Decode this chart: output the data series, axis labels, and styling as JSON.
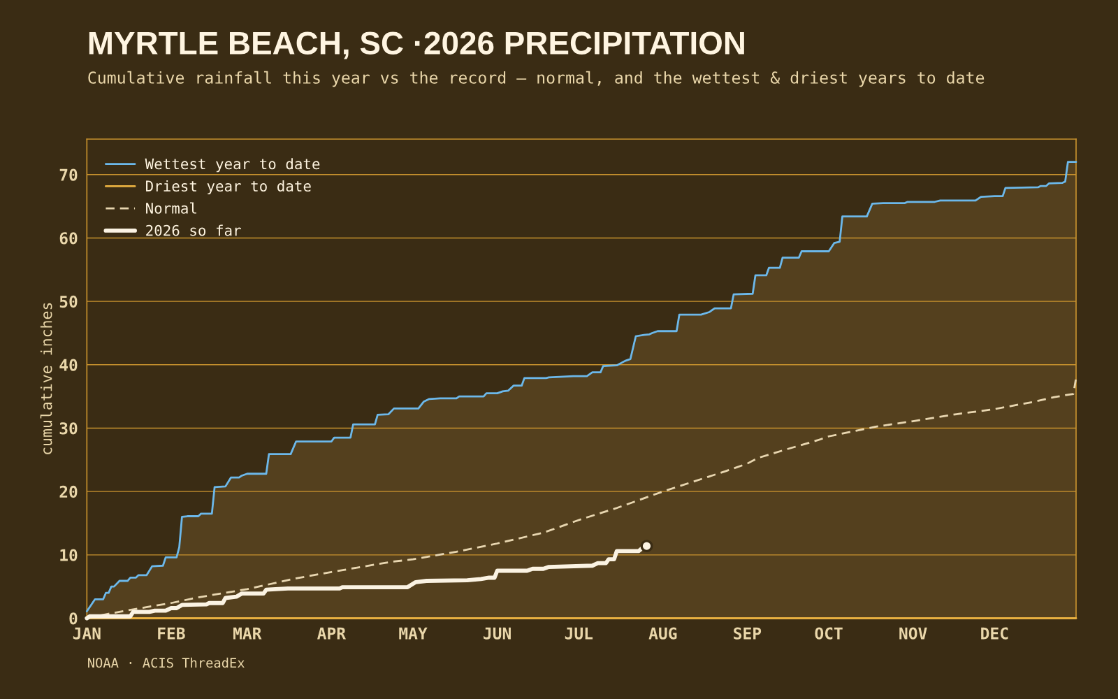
{
  "chart_data": {
    "type": "line",
    "title": "MYRTLE BEACH, SC ·2026 PRECIPITATION",
    "subtitle": "Cumulative rainfall this year vs the record — normal, and the wettest & driest years to date",
    "ylabel": "cumulative inches",
    "annotations": [
      "NOAA · ACIS ThreadEx"
    ],
    "xlim": [
      "2026-01-01",
      "2026-12-31"
    ],
    "xticks": [
      {
        "value": "2026-01-01",
        "label": "JAN"
      },
      {
        "value": "2026-02-01",
        "label": "FEB"
      },
      {
        "value": "2026-03-01",
        "label": "MAR"
      },
      {
        "value": "2026-04-01",
        "label": "APR"
      },
      {
        "value": "2026-05-01",
        "label": "MAY"
      },
      {
        "value": "2026-06-01",
        "label": "JUN"
      },
      {
        "value": "2026-07-01",
        "label": "JUL"
      },
      {
        "value": "2026-08-01",
        "label": "AUG"
      },
      {
        "value": "2026-09-01",
        "label": "SEP"
      },
      {
        "value": "2026-10-01",
        "label": "OCT"
      },
      {
        "value": "2026-11-01",
        "label": "NOV"
      },
      {
        "value": "2026-12-01",
        "label": "DEC"
      }
    ],
    "ylim": [
      0,
      75.6
    ],
    "yticks": [
      0,
      10,
      20,
      30,
      40,
      50,
      60,
      70
    ],
    "grid": "y",
    "legend": "top left",
    "series": [
      {
        "type": "area",
        "color": "#54401e",
        "x": [
          "2026-01-01",
          "2026-01-04",
          "2026-01-07",
          "2026-01-08",
          "2026-01-09",
          "2026-01-10",
          "2026-01-11",
          "2026-01-13",
          "2026-01-16",
          "2026-01-17",
          "2026-01-19",
          "2026-01-20",
          "2026-01-23",
          "2026-01-25",
          "2026-01-29",
          "2026-01-30",
          "2026-02-03",
          "2026-02-04",
          "2026-02-05",
          "2026-02-07",
          "2026-02-11",
          "2026-02-12",
          "2026-02-16",
          "2026-02-17",
          "2026-02-21",
          "2026-02-23",
          "2026-02-26",
          "2026-02-27",
          "2026-03-01",
          "2026-03-08",
          "2026-03-09",
          "2026-03-17",
          "2026-03-19",
          "2026-04-01",
          "2026-04-02",
          "2026-04-08",
          "2026-04-09",
          "2026-04-17",
          "2026-04-18",
          "2026-04-22",
          "2026-04-24",
          "2026-05-03",
          "2026-05-05",
          "2026-05-07",
          "2026-05-11",
          "2026-05-17",
          "2026-05-18",
          "2026-05-27",
          "2026-05-28",
          "2026-06-01",
          "2026-06-03",
          "2026-06-05",
          "2026-06-07",
          "2026-06-10",
          "2026-06-11",
          "2026-06-19",
          "2026-06-20",
          "2026-06-24",
          "2026-06-29",
          "2026-07-04",
          "2026-07-06",
          "2026-07-09",
          "2026-07-10",
          "2026-07-15",
          "2026-07-18",
          "2026-07-20",
          "2026-07-22",
          "2026-07-25",
          "2026-07-27",
          "2026-07-28",
          "2026-07-30",
          "2026-08-06",
          "2026-08-07",
          "2026-08-15",
          "2026-08-18",
          "2026-08-20",
          "2026-08-26",
          "2026-08-27",
          "2026-09-03",
          "2026-09-04",
          "2026-09-08",
          "2026-09-09",
          "2026-09-13",
          "2026-09-14",
          "2026-09-20",
          "2026-09-21",
          "2026-10-01",
          "2026-10-03",
          "2026-10-05",
          "2026-10-06",
          "2026-10-15",
          "2026-10-17",
          "2026-10-21",
          "2026-10-29",
          "2026-10-30",
          "2026-11-09",
          "2026-11-11",
          "2026-11-24",
          "2026-11-26",
          "2026-12-01",
          "2026-12-04",
          "2026-12-05",
          "2026-12-17",
          "2026-12-18",
          "2026-12-20",
          "2026-12-21",
          "2026-12-26",
          "2026-12-27",
          "2026-12-28",
          "2026-12-31"
        ],
        "values": [
          1.1,
          3.0,
          3.0,
          4.0,
          4.0,
          5.0,
          5.0,
          5.9,
          5.9,
          6.4,
          6.4,
          6.8,
          6.8,
          8.2,
          8.3,
          9.6,
          9.6,
          11.2,
          16.0,
          16.1,
          16.1,
          16.5,
          16.5,
          20.7,
          20.8,
          22.2,
          22.2,
          22.5,
          22.8,
          22.8,
          25.9,
          25.9,
          27.9,
          27.9,
          28.5,
          28.5,
          30.6,
          30.6,
          32.1,
          32.2,
          33.1,
          33.1,
          34.2,
          34.6,
          34.7,
          34.7,
          35.0,
          35.0,
          35.5,
          35.5,
          35.8,
          35.9,
          36.7,
          36.7,
          37.9,
          37.9,
          38.0,
          38.1,
          38.2,
          38.2,
          38.8,
          38.8,
          39.8,
          39.9,
          40.6,
          40.9,
          44.5,
          44.7,
          44.8,
          45.0,
          45.3,
          45.3,
          47.9,
          47.9,
          48.3,
          48.9,
          48.9,
          51.1,
          51.2,
          54.1,
          54.1,
          55.3,
          55.3,
          56.9,
          56.9,
          57.9,
          57.9,
          59.2,
          59.4,
          63.4,
          63.4,
          65.4,
          65.5,
          65.5,
          65.7,
          65.7,
          65.9,
          65.9,
          66.5,
          66.6,
          66.6,
          67.9,
          68.0,
          68.2,
          68.2,
          68.6,
          68.7,
          68.9,
          72.0,
          72.0
        ]
      },
      {
        "name": "Wettest year to date",
        "color": "#6cb8ea",
        "x": [
          "2026-01-01",
          "2026-01-04",
          "2026-01-07",
          "2026-01-08",
          "2026-01-09",
          "2026-01-10",
          "2026-01-11",
          "2026-01-13",
          "2026-01-16",
          "2026-01-17",
          "2026-01-19",
          "2026-01-20",
          "2026-01-23",
          "2026-01-25",
          "2026-01-29",
          "2026-01-30",
          "2026-02-03",
          "2026-02-04",
          "2026-02-05",
          "2026-02-07",
          "2026-02-11",
          "2026-02-12",
          "2026-02-16",
          "2026-02-17",
          "2026-02-21",
          "2026-02-23",
          "2026-02-26",
          "2026-02-27",
          "2026-03-01",
          "2026-03-08",
          "2026-03-09",
          "2026-03-17",
          "2026-03-19",
          "2026-04-01",
          "2026-04-02",
          "2026-04-08",
          "2026-04-09",
          "2026-04-17",
          "2026-04-18",
          "2026-04-22",
          "2026-04-24",
          "2026-05-03",
          "2026-05-05",
          "2026-05-07",
          "2026-05-11",
          "2026-05-17",
          "2026-05-18",
          "2026-05-27",
          "2026-05-28",
          "2026-06-01",
          "2026-06-03",
          "2026-06-05",
          "2026-06-07",
          "2026-06-10",
          "2026-06-11",
          "2026-06-19",
          "2026-06-20",
          "2026-06-24",
          "2026-06-29",
          "2026-07-04",
          "2026-07-06",
          "2026-07-09",
          "2026-07-10",
          "2026-07-15",
          "2026-07-18",
          "2026-07-20",
          "2026-07-22",
          "2026-07-25",
          "2026-07-27",
          "2026-07-28",
          "2026-07-30",
          "2026-08-06",
          "2026-08-07",
          "2026-08-15",
          "2026-08-18",
          "2026-08-20",
          "2026-08-26",
          "2026-08-27",
          "2026-09-03",
          "2026-09-04",
          "2026-09-08",
          "2026-09-09",
          "2026-09-13",
          "2026-09-14",
          "2026-09-20",
          "2026-09-21",
          "2026-10-01",
          "2026-10-03",
          "2026-10-05",
          "2026-10-06",
          "2026-10-15",
          "2026-10-17",
          "2026-10-21",
          "2026-10-29",
          "2026-10-30",
          "2026-11-09",
          "2026-11-11",
          "2026-11-24",
          "2026-11-26",
          "2026-12-01",
          "2026-12-04",
          "2026-12-05",
          "2026-12-17",
          "2026-12-18",
          "2026-12-20",
          "2026-12-21",
          "2026-12-26",
          "2026-12-27",
          "2026-12-28",
          "2026-12-31"
        ],
        "values": [
          1.1,
          3.0,
          3.0,
          4.0,
          4.0,
          5.0,
          5.0,
          5.9,
          5.9,
          6.4,
          6.4,
          6.8,
          6.8,
          8.2,
          8.3,
          9.6,
          9.6,
          11.2,
          16.0,
          16.1,
          16.1,
          16.5,
          16.5,
          20.7,
          20.8,
          22.2,
          22.2,
          22.5,
          22.8,
          22.8,
          25.9,
          25.9,
          27.9,
          27.9,
          28.5,
          28.5,
          30.6,
          30.6,
          32.1,
          32.2,
          33.1,
          33.1,
          34.2,
          34.6,
          34.7,
          34.7,
          35.0,
          35.0,
          35.5,
          35.5,
          35.8,
          35.9,
          36.7,
          36.7,
          37.9,
          37.9,
          38.0,
          38.1,
          38.2,
          38.2,
          38.8,
          38.8,
          39.8,
          39.9,
          40.6,
          40.9,
          44.5,
          44.7,
          44.8,
          45.0,
          45.3,
          45.3,
          47.9,
          47.9,
          48.3,
          48.9,
          48.9,
          51.1,
          51.2,
          54.1,
          54.1,
          55.3,
          55.3,
          56.9,
          56.9,
          57.9,
          57.9,
          59.2,
          59.4,
          63.4,
          63.4,
          65.4,
          65.5,
          65.5,
          65.7,
          65.7,
          65.9,
          65.9,
          66.5,
          66.6,
          66.6,
          67.9,
          68.0,
          68.2,
          68.2,
          68.6,
          68.7,
          68.9,
          72.0,
          72.0
        ]
      },
      {
        "name": "Driest year to date",
        "color": "#e8b040",
        "x": [
          "2026-01-01",
          "2026-12-31"
        ],
        "values": [
          0,
          0
        ]
      },
      {
        "name": "Normal",
        "color": "#e8d6b0",
        "line_style": "dashed",
        "x": [
          "2026-01-01",
          "2026-01-09",
          "2026-01-18",
          "2026-02-01",
          "2026-02-11",
          "2026-03-01",
          "2026-03-19",
          "2026-04-01",
          "2026-04-23",
          "2026-05-01",
          "2026-05-17",
          "2026-06-01",
          "2026-06-18",
          "2026-07-01",
          "2026-07-15",
          "2026-08-01",
          "2026-08-24",
          "2026-09-01",
          "2026-09-05",
          "2026-09-15",
          "2026-09-27",
          "2026-10-01",
          "2026-10-09",
          "2026-10-18",
          "2026-11-01",
          "2026-11-17",
          "2026-12-01",
          "2026-12-16",
          "2026-12-23",
          "2026-12-30",
          "2026-12-31"
        ],
        "values": [
          0,
          0.7,
          1.4,
          2.4,
          3.3,
          4.6,
          6.3,
          7.3,
          8.9,
          9.3,
          10.5,
          11.8,
          13.5,
          15.5,
          17.4,
          20.0,
          23.2,
          24.4,
          25.3,
          26.6,
          28.1,
          28.7,
          29.4,
          30.2,
          31.1,
          32.2,
          33.0,
          34.2,
          34.9,
          35.4,
          37.9
        ]
      },
      {
        "name": "2026 so far",
        "color": "#fbf3e3",
        "x": [
          "2026-01-01",
          "2026-01-02",
          "2026-01-17",
          "2026-01-18",
          "2026-01-24",
          "2026-01-26",
          "2026-01-30",
          "2026-02-01",
          "2026-02-03",
          "2026-02-05",
          "2026-02-14",
          "2026-02-15",
          "2026-02-20",
          "2026-02-21",
          "2026-02-25",
          "2026-02-27",
          "2026-03-07",
          "2026-03-08",
          "2026-03-16",
          "2026-04-04",
          "2026-04-05",
          "2026-04-29",
          "2026-05-02",
          "2026-05-06",
          "2026-05-21",
          "2026-05-26",
          "2026-05-29",
          "2026-05-31",
          "2026-06-01",
          "2026-06-12",
          "2026-06-14",
          "2026-06-18",
          "2026-06-20",
          "2026-07-06",
          "2026-07-08",
          "2026-07-11",
          "2026-07-12",
          "2026-07-14",
          "2026-07-15",
          "2026-07-23",
          "2026-07-25"
        ],
        "values": [
          0,
          0.3,
          0.3,
          1.0,
          1.0,
          1.2,
          1.2,
          1.6,
          1.6,
          2.1,
          2.2,
          2.4,
          2.4,
          3.2,
          3.4,
          3.9,
          3.9,
          4.5,
          4.7,
          4.7,
          4.9,
          4.9,
          5.7,
          5.9,
          6.0,
          6.2,
          6.4,
          6.4,
          7.5,
          7.5,
          7.8,
          7.8,
          8.1,
          8.3,
          8.7,
          8.7,
          9.3,
          9.3,
          10.6,
          10.6,
          11.3
        ]
      },
      {
        "type": "scatter",
        "color": "#fbf3e3",
        "marker": "circle",
        "x": [
          "2026-07-26"
        ],
        "values": [
          11.4
        ]
      }
    ]
  }
}
